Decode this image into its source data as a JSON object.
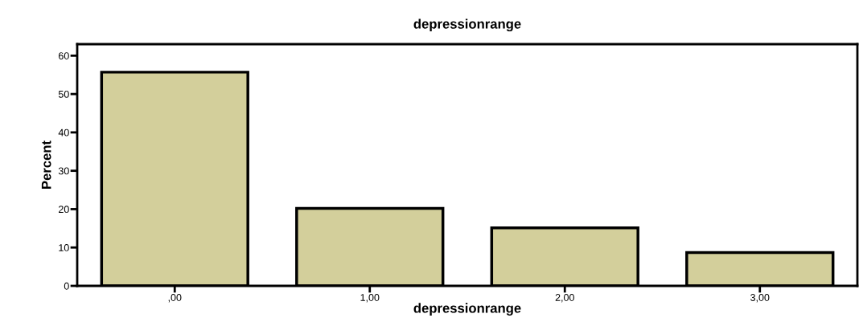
{
  "chart_data": {
    "type": "bar",
    "title": "depressionrange",
    "xlabel": "depressionrange",
    "ylabel": "Percent",
    "categories": [
      ",00",
      "1,00",
      "2,00",
      "3,00"
    ],
    "values": [
      55.7,
      20.2,
      15.1,
      8.7
    ],
    "color": "#d3cf9b",
    "ylim": [
      0,
      63
    ],
    "yticks": [
      0,
      10,
      20,
      30,
      40,
      50,
      60
    ],
    "grid": false
  }
}
